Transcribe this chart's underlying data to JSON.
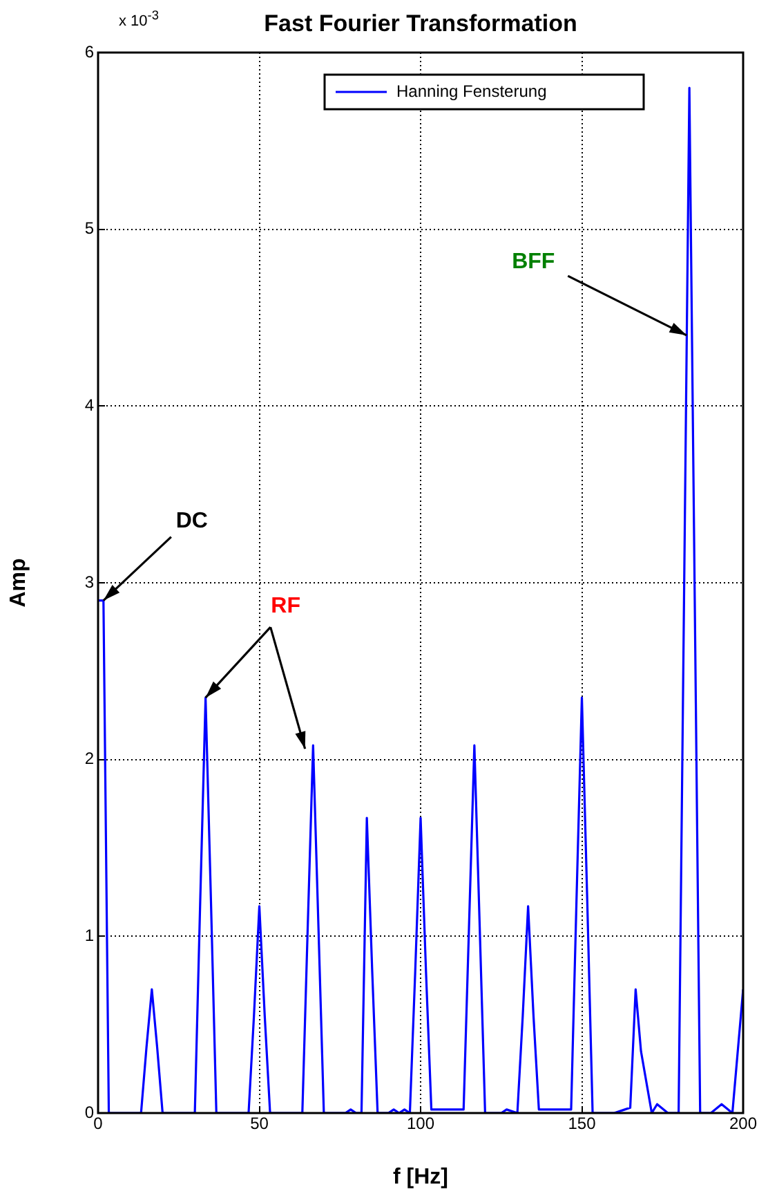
{
  "chart_data": {
    "type": "line",
    "title": "Fast Fourier Transformation",
    "xlabel": "f [Hz]",
    "ylabel": "Amp",
    "xlim": [
      0,
      200
    ],
    "xticks": [
      0,
      50,
      100,
      150,
      200
    ],
    "ylim": [
      0,
      6
    ],
    "yticks": [
      0,
      1,
      2,
      3,
      4,
      5,
      6
    ],
    "grid": true,
    "legend": "top right",
    "marker": "none",
    "line_style": "solid",
    "annotations": [
      "x 10$^{-3}$",
      {
        "text": "DC",
        "x": 1.67,
        "y": 2.9
      },
      {
        "text": "RF",
        "x": 33.33,
        "y": 2.35
      },
      {
        "text": "BFF",
        "x": 182.5,
        "y": 4.4
      }
    ],
    "series": [
      {
        "name": "Hanning Fensterung",
        "color": "#0000ff",
        "x": [
          0,
          1.67,
          3.33,
          13.33,
          15,
          16.67,
          18.33,
          20,
          30,
          31.67,
          33.33,
          35,
          36.67,
          46.67,
          48.33,
          50,
          51.67,
          53.33,
          63.33,
          65,
          66.67,
          68.33,
          70,
          76.67,
          78.33,
          80,
          81.67,
          83.33,
          85,
          86.67,
          90,
          91.67,
          93.33,
          95,
          96.67,
          98.33,
          100,
          101.67,
          103.33,
          113.33,
          115,
          116.67,
          118.33,
          120,
          125,
          126.67,
          130,
          131.67,
          133.33,
          135,
          136.67,
          146.67,
          148.33,
          150,
          151.67,
          153.33,
          160,
          163.33,
          165,
          166.67,
          168.33,
          171.67,
          173.33,
          176.67,
          180,
          181.67,
          183.33,
          185,
          186.67,
          190,
          193.33,
          196.67,
          200
        ],
        "values": [
          2.9,
          2.9,
          0,
          0,
          0.37,
          0.7,
          0.37,
          0,
          0,
          1.2,
          2.35,
          1.2,
          0,
          0,
          0.55,
          1.17,
          0.55,
          0,
          0,
          1.05,
          2.08,
          1.05,
          0,
          0,
          0.02,
          0,
          0,
          1.67,
          0.8,
          0,
          0,
          0.02,
          0,
          0.02,
          0,
          0.8,
          1.67,
          0.8,
          0.02,
          0.02,
          1.05,
          2.08,
          1.05,
          0,
          0,
          0.02,
          0,
          0.55,
          1.17,
          0.55,
          0.02,
          0.02,
          1.2,
          2.35,
          1.2,
          0,
          0,
          0.02,
          0.03,
          0.7,
          0.35,
          0,
          0.05,
          0,
          0,
          2.9,
          5.8,
          2.9,
          0,
          0,
          0.05,
          0,
          0.7
        ]
      }
    ]
  }
}
